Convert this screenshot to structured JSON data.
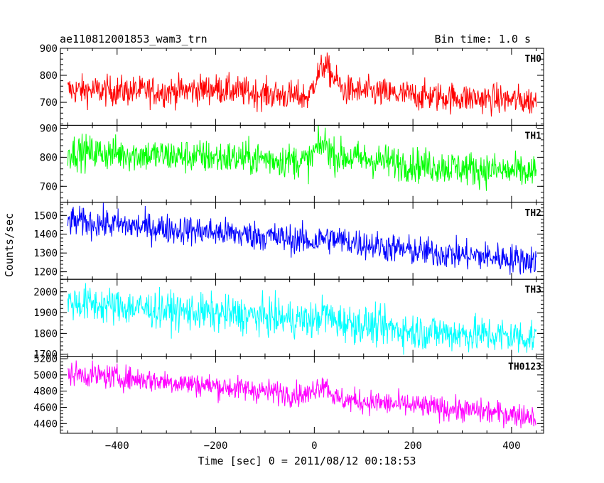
{
  "chart_data": {
    "type": "line",
    "title_left": "ae110812001853_wam3_trn",
    "title_right": "Bin time: 1.0 s",
    "xlabel": "Time [sec] 0 = 2011/08/12 00:18:53",
    "ylabel": "Counts/sec",
    "xlim": [
      -515,
      465
    ],
    "x_ticks": [
      -400,
      -200,
      0,
      200,
      400
    ],
    "x_tick_labels": [
      "−400",
      "−200",
      "0",
      "200",
      "400"
    ],
    "series_x_range": [
      -500,
      450
    ],
    "grid": false,
    "panels": [
      {
        "label": "TH0",
        "color": "#ff0000",
        "ylim": [
          615,
          900
        ],
        "y_ticks": [
          700,
          800,
          900
        ],
        "y_tick_labels": [
          "700",
          "800",
          "900"
        ],
        "trend": [
          [
            -500,
            745
          ],
          [
            -300,
            740
          ],
          [
            -200,
            750
          ],
          [
            -100,
            730
          ],
          [
            -10,
            720
          ],
          [
            0,
            780
          ],
          [
            20,
            840
          ],
          [
            40,
            790
          ],
          [
            60,
            745
          ],
          [
            200,
            725
          ],
          [
            450,
            705
          ]
        ],
        "noise": 28
      },
      {
        "label": "TH1",
        "color": "#00ff00",
        "ylim": [
          645,
          910
        ],
        "y_ticks": [
          700,
          800,
          900
        ],
        "y_tick_labels": [
          "700",
          "800",
          "900"
        ],
        "trend": [
          [
            -500,
            820
          ],
          [
            -300,
            805
          ],
          [
            -100,
            795
          ],
          [
            -10,
            785
          ],
          [
            0,
            820
          ],
          [
            20,
            850
          ],
          [
            40,
            805
          ],
          [
            200,
            775
          ],
          [
            450,
            745
          ]
        ],
        "noise": 30
      },
      {
        "label": "TH2",
        "color": "#0000ff",
        "ylim": [
          1160,
          1570
        ],
        "y_ticks": [
          1200,
          1300,
          1400,
          1500
        ],
        "y_tick_labels": [
          "1200",
          "1300",
          "1400",
          "1500"
        ],
        "trend": [
          [
            -500,
            1470
          ],
          [
            -300,
            1430
          ],
          [
            -100,
            1390
          ],
          [
            0,
            1360
          ],
          [
            20,
            1380
          ],
          [
            200,
            1310
          ],
          [
            450,
            1260
          ]
        ],
        "noise": 40
      },
      {
        "label": "TH3",
        "color": "#00ffff",
        "ylim": [
          1690,
          2060
        ],
        "y_ticks": [
          1700,
          1800,
          1900,
          2000
        ],
        "y_tick_labels": [
          "1700",
          "1800",
          "1900",
          "2000"
        ],
        "trend": [
          [
            -500,
            1950
          ],
          [
            -300,
            1910
          ],
          [
            -100,
            1880
          ],
          [
            0,
            1860
          ],
          [
            20,
            1900
          ],
          [
            40,
            1860
          ],
          [
            200,
            1810
          ],
          [
            450,
            1780
          ]
        ],
        "noise": 45
      },
      {
        "label": "TH0123",
        "color": "#ff00ff",
        "ylim": [
          4280,
          5230
        ],
        "y_ticks": [
          4400,
          4600,
          4800,
          5000,
          5200
        ],
        "y_tick_labels": [
          "4400",
          "4600",
          "4800",
          "5000",
          "5200"
        ],
        "trend": [
          [
            -500,
            5020
          ],
          [
            -300,
            4920
          ],
          [
            -100,
            4800
          ],
          [
            -10,
            4750
          ],
          [
            0,
            4840
          ],
          [
            20,
            4900
          ],
          [
            45,
            4700
          ],
          [
            200,
            4620
          ],
          [
            450,
            4490
          ]
        ],
        "noise": 75
      }
    ]
  }
}
